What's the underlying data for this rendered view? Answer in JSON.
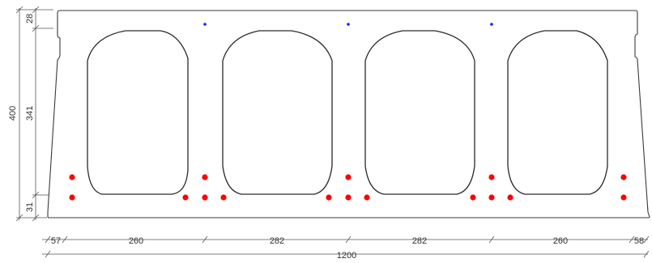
{
  "colors": {
    "outline": "#3a3a3a",
    "strand": "#ff0000",
    "top_wire": "#1a1aff",
    "dimension": "#555555"
  },
  "dimensions": {
    "vertical": {
      "total": "400",
      "top": "28",
      "middle": "341",
      "bottom": "31"
    },
    "horizontal": {
      "segments": [
        "57",
        "260",
        "282",
        "282",
        "260",
        "58"
      ],
      "total": "1200"
    }
  }
}
